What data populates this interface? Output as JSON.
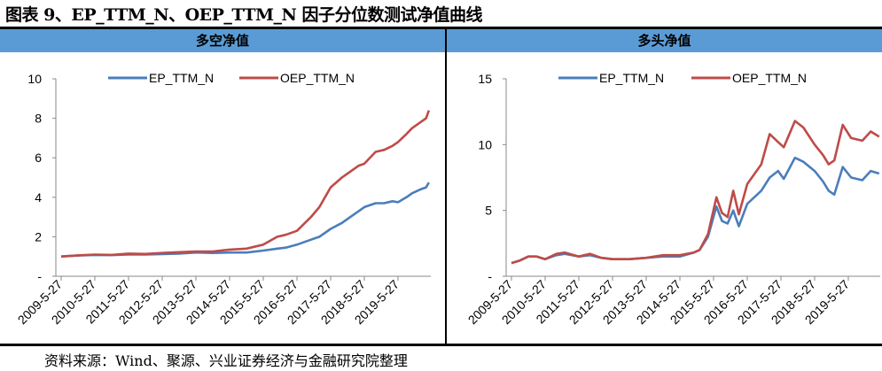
{
  "figure_title": "图表 9、EP_TTM_N、OEP_TTM_N 因子分位数测试净值曲线",
  "source": "资料来源：Wind、聚源、兴业证券经济与金融研究院整理",
  "colors": {
    "header_bg": "#5B9BD5",
    "EP_TTM_N": "#4A7EBB",
    "OEP_TTM_N": "#BE4B48"
  },
  "chart_data": [
    {
      "type": "line",
      "title": "多空净值",
      "ylim": [
        0,
        10
      ],
      "yticks": [
        0,
        2,
        4,
        6,
        8,
        10
      ],
      "ytick_labels": [
        "-",
        "2",
        "4",
        "6",
        "8",
        "10"
      ],
      "xtick_labels": [
        "2009-5-27",
        "2010-5-27",
        "2011-5-27",
        "2012-5-27",
        "2013-5-27",
        "2014-5-27",
        "2015-5-27",
        "2016-5-27",
        "2017-5-27",
        "2018-5-27",
        "2019-5-27"
      ],
      "legend": "top",
      "grid": false,
      "series": [
        {
          "name": "EP_TTM_N",
          "x": [
            "2009-05",
            "2009-11",
            "2010-05",
            "2010-11",
            "2011-05",
            "2011-11",
            "2012-05",
            "2012-11",
            "2013-05",
            "2013-11",
            "2014-05",
            "2014-11",
            "2015-05",
            "2015-10",
            "2016-01",
            "2016-05",
            "2016-10",
            "2017-01",
            "2017-05",
            "2017-09",
            "2017-12",
            "2018-03",
            "2018-05",
            "2018-09",
            "2018-12",
            "2019-03",
            "2019-05",
            "2019-08",
            "2019-10",
            "2020-01",
            "2020-03",
            "2020-04"
          ],
          "y": [
            1.0,
            1.05,
            1.08,
            1.07,
            1.1,
            1.1,
            1.12,
            1.15,
            1.2,
            1.18,
            1.2,
            1.2,
            1.3,
            1.4,
            1.45,
            1.6,
            1.85,
            2.0,
            2.4,
            2.7,
            3.0,
            3.3,
            3.5,
            3.7,
            3.7,
            3.8,
            3.75,
            4.0,
            4.2,
            4.4,
            4.5,
            4.75
          ]
        },
        {
          "name": "OEP_TTM_N",
          "x": [
            "2009-05",
            "2009-11",
            "2010-05",
            "2010-11",
            "2011-05",
            "2011-11",
            "2012-05",
            "2012-11",
            "2013-05",
            "2013-11",
            "2014-05",
            "2014-11",
            "2015-05",
            "2015-10",
            "2016-01",
            "2016-05",
            "2016-10",
            "2017-01",
            "2017-05",
            "2017-09",
            "2017-12",
            "2018-03",
            "2018-05",
            "2018-09",
            "2018-12",
            "2019-03",
            "2019-05",
            "2019-08",
            "2019-10",
            "2020-01",
            "2020-03",
            "2020-04"
          ],
          "y": [
            1.0,
            1.06,
            1.1,
            1.08,
            1.15,
            1.13,
            1.18,
            1.22,
            1.25,
            1.25,
            1.35,
            1.4,
            1.6,
            2.0,
            2.1,
            2.3,
            3.0,
            3.5,
            4.5,
            5.0,
            5.3,
            5.6,
            5.7,
            6.3,
            6.4,
            6.6,
            6.8,
            7.2,
            7.5,
            7.8,
            8.0,
            8.4
          ]
        }
      ]
    },
    {
      "type": "line",
      "title": "多头净值",
      "ylim": [
        0,
        15
      ],
      "yticks": [
        0,
        5,
        10,
        15
      ],
      "ytick_labels": [
        "-",
        "5",
        "10",
        "15"
      ],
      "xtick_labels": [
        "2009-5-27",
        "2010-5-27",
        "2011-5-27",
        "2012-5-27",
        "2013-5-27",
        "2014-5-27",
        "2015-5-27",
        "2016-5-27",
        "2017-5-27",
        "2018-5-27",
        "2019-5-27"
      ],
      "legend": "top",
      "grid": false,
      "series": [
        {
          "name": "EP_TTM_N",
          "x": [
            "2009-05",
            "2009-08",
            "2009-11",
            "2010-02",
            "2010-05",
            "2010-09",
            "2010-12",
            "2011-05",
            "2011-09",
            "2012-01",
            "2012-05",
            "2012-11",
            "2013-05",
            "2013-11",
            "2014-05",
            "2014-10",
            "2014-12",
            "2015-03",
            "2015-06",
            "2015-08",
            "2015-10",
            "2015-12",
            "2016-02",
            "2016-05",
            "2016-10",
            "2017-01",
            "2017-04",
            "2017-06",
            "2017-10",
            "2018-01",
            "2018-05",
            "2018-08",
            "2018-10",
            "2018-12",
            "2019-03",
            "2019-06",
            "2019-10",
            "2020-01",
            "2020-04"
          ],
          "y": [
            1.0,
            1.2,
            1.5,
            1.5,
            1.3,
            1.6,
            1.7,
            1.5,
            1.6,
            1.4,
            1.3,
            1.3,
            1.4,
            1.5,
            1.5,
            1.8,
            2.0,
            3.0,
            5.3,
            4.2,
            4.0,
            5.0,
            3.8,
            5.5,
            6.5,
            7.5,
            8.0,
            7.4,
            9.0,
            8.7,
            8.0,
            7.2,
            6.5,
            6.2,
            8.3,
            7.5,
            7.3,
            8.0,
            7.8
          ]
        },
        {
          "name": "OEP_TTM_N",
          "x": [
            "2009-05",
            "2009-08",
            "2009-11",
            "2010-02",
            "2010-05",
            "2010-09",
            "2010-12",
            "2011-05",
            "2011-09",
            "2012-01",
            "2012-05",
            "2012-11",
            "2013-05",
            "2013-11",
            "2014-05",
            "2014-10",
            "2014-12",
            "2015-03",
            "2015-06",
            "2015-08",
            "2015-10",
            "2015-12",
            "2016-02",
            "2016-05",
            "2016-10",
            "2017-01",
            "2017-04",
            "2017-06",
            "2017-10",
            "2018-01",
            "2018-05",
            "2018-08",
            "2018-10",
            "2018-12",
            "2019-03",
            "2019-06",
            "2019-10",
            "2020-01",
            "2020-04"
          ],
          "y": [
            1.0,
            1.2,
            1.5,
            1.5,
            1.3,
            1.7,
            1.8,
            1.5,
            1.7,
            1.4,
            1.3,
            1.3,
            1.4,
            1.6,
            1.6,
            1.8,
            2.0,
            3.2,
            6.0,
            4.8,
            4.5,
            6.5,
            4.7,
            7.0,
            8.5,
            10.8,
            10.2,
            9.8,
            11.8,
            11.3,
            10.0,
            9.2,
            8.5,
            8.8,
            11.5,
            10.5,
            10.3,
            11.0,
            10.6
          ]
        }
      ]
    }
  ]
}
